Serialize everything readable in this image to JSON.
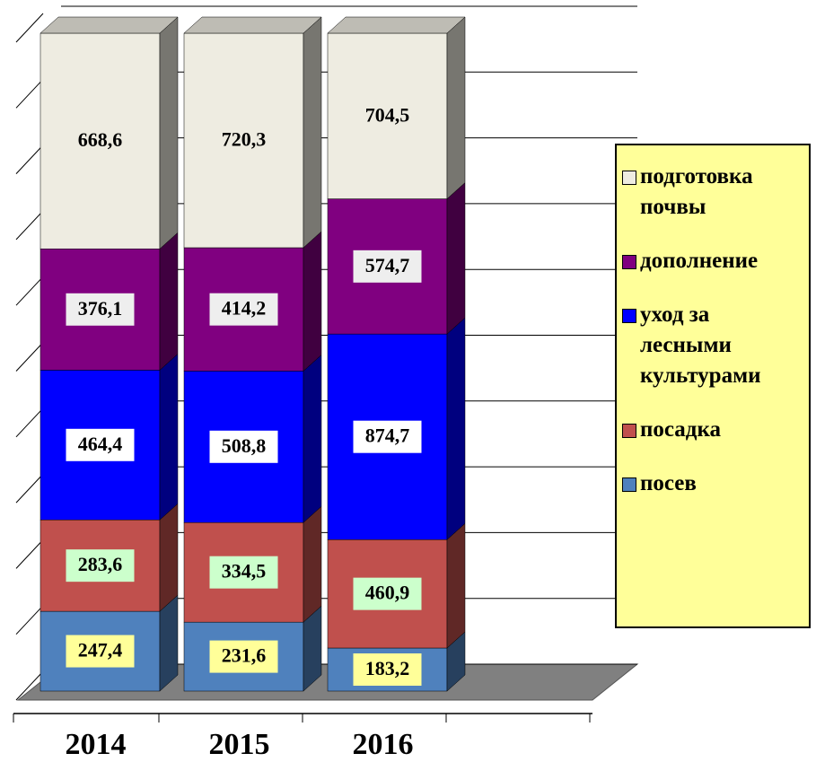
{
  "chart_data": {
    "type": "bar",
    "stacking": "percent",
    "categories": [
      "2014",
      "2015",
      "2016"
    ],
    "series": [
      {
        "name": "посев",
        "color": "#4f81bd",
        "label_color": "#ffff99",
        "values": [
          247.4,
          231.6,
          183.2
        ],
        "value_labels": [
          "247,4",
          "231,6",
          "183,2"
        ]
      },
      {
        "name": "посадка",
        "color": "#c0504d",
        "label_color": "#ccffcc",
        "values": [
          283.6,
          334.5,
          460.9
        ],
        "value_labels": [
          "283,6",
          "334,5",
          "460,9"
        ]
      },
      {
        "name": "уход за лесными культурами",
        "color": "#0000ff",
        "label_color": "#ffffff",
        "values": [
          464.4,
          508.8,
          874.7
        ],
        "value_labels": [
          "464,4",
          "508,8",
          "874,7"
        ]
      },
      {
        "name": "дополнение",
        "color": "#800080",
        "label_color": "#eeeeee",
        "values": [
          376.1,
          414.2,
          574.7
        ],
        "value_labels": [
          "376,1",
          "414,2",
          "574,7"
        ]
      },
      {
        "name": "подготовка почвы",
        "color": "#eeece1",
        "label_color": null,
        "values": [
          668.6,
          720.3,
          704.5
        ],
        "value_labels": [
          "668,6",
          "720,3",
          "704,5"
        ]
      }
    ],
    "ylim": [
      0,
      100
    ],
    "yticks": [
      0,
      10,
      20,
      30,
      40,
      50,
      60,
      70,
      80,
      90,
      100
    ],
    "grid": true,
    "legend": "right"
  }
}
